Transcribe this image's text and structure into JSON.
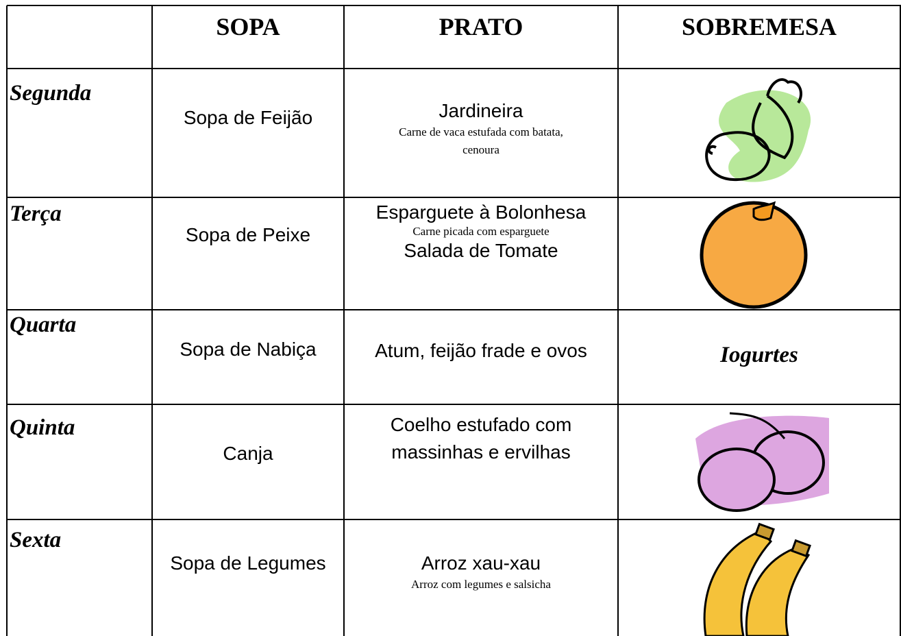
{
  "table": {
    "header": [
      "SOPA",
      "PRATO",
      "SOBREMESA"
    ],
    "rows": [
      {
        "day": "Segunda",
        "sopa": "Sopa de Feijão",
        "prato": {
          "main": "Jardineira",
          "note": "Carne de vaca estufada com batata, cenoura"
        }
      },
      {
        "day": "Terça",
        "sopa": "Sopa de Peixe",
        "prato": {
          "main": "Esparguete à Bolonhesa",
          "note": "Carne picada com esparguete",
          "side": "Salada de Tomate"
        }
      },
      {
        "day": "Quarta",
        "sopa": "Sopa de Nabiça",
        "prato": {
          "main": "Atum, feijão frade e ovos"
        },
        "sobremesa": "Iogurtes"
      },
      {
        "day": "Quinta",
        "sopa": "Canja",
        "prato": {
          "main": "Coelho estufado com massinhas e ervilhas"
        }
      },
      {
        "day": "Sexta",
        "sopa": "Sopa de Legumes",
        "prato": {
          "main": "Arroz xau-xau",
          "note": "Arroz com legumes e salsicha"
        }
      }
    ]
  }
}
